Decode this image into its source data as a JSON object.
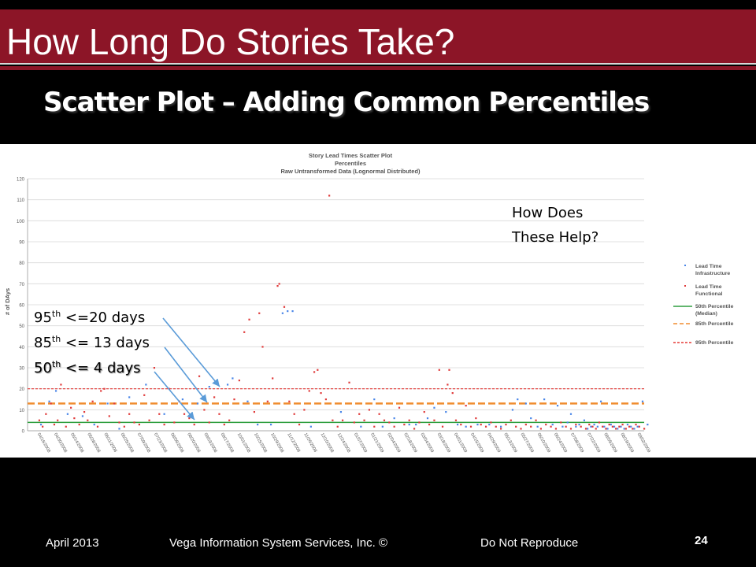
{
  "slide": {
    "title": "How Long Do Stories Take?",
    "subtitle": "Scatter Plot – Adding Common Percentiles",
    "help_line1": "How Does",
    "help_line2": "These Help?",
    "p95": {
      "ord": "95",
      "sup": "th",
      "text": " <=20 days"
    },
    "p85": {
      "ord": "85",
      "sup": "th",
      "text": " <= 13 days"
    },
    "p50": {
      "ord": "50",
      "sup": "th",
      "text": " <= 4 days"
    }
  },
  "footer": {
    "date": "April 2013",
    "company": "Vega Information System Services, Inc. ©",
    "notice": "Do Not Reproduce",
    "page": "24"
  },
  "colors": {
    "title_bar": "#8c1527",
    "infrastructure": "#4a86e8",
    "functional": "#e03a3a",
    "p50": "#2e9e3e",
    "p85": "#f08c2e",
    "p95": "#e53935",
    "arrow": "#5a9bd8"
  },
  "chart_data": {
    "type": "scatter",
    "title": "Story Lead Times Scatter Plot",
    "subtitle": "Percentiles",
    "subtitle2": "Raw Untransformed Data (Lognormal Distributed)",
    "ylabel": "# of DAys",
    "xlabel": "",
    "ylim": [
      0,
      120
    ],
    "yticks": [
      0,
      10,
      20,
      30,
      40,
      50,
      60,
      70,
      80,
      90,
      100,
      110,
      120
    ],
    "xticks": [
      "04/16/2008",
      "04/30/2008",
      "05/14/2008",
      "05/28/2008",
      "06/11/2008",
      "06/25/2008",
      "07/09/2008",
      "07/23/2008",
      "08/06/2008",
      "08/20/2008",
      "09/03/2008",
      "09/17/2008",
      "10/01/2008",
      "10/15/2008",
      "10/29/2008",
      "11/12/2008",
      "11/26/2008",
      "12/10/2008",
      "12/24/2008",
      "01/07/2009",
      "01/21/2009",
      "02/04/2009",
      "02/18/2009",
      "03/04/2009",
      "03/18/2009",
      "04/01/2009",
      "04/15/2009",
      "04/29/2009",
      "05/13/2009",
      "05/27/2009",
      "06/10/2009",
      "06/24/2009",
      "07/08/2009",
      "07/22/2009",
      "08/05/2009",
      "08/19/2009",
      "09/02/2009"
    ],
    "grid": true,
    "legend_placement": "right",
    "legend": [
      "Lead Time Infrastructure",
      "Lead Time Functional",
      "50th Percentile (Median)",
      "85th Percentile",
      "95th Percentile"
    ],
    "percentiles": {
      "p50": 4,
      "p85": 13,
      "p95": 20
    },
    "series": [
      {
        "name": "Lead Time Infrastructure",
        "points": [
          [
            0.3,
            3
          ],
          [
            0.8,
            14
          ],
          [
            1.2,
            19
          ],
          [
            1.9,
            8
          ],
          [
            2.8,
            7
          ],
          [
            3.5,
            3
          ],
          [
            4.3,
            13
          ],
          [
            5.0,
            1
          ],
          [
            5.6,
            16
          ],
          [
            6.6,
            22
          ],
          [
            7.7,
            8
          ],
          [
            8.8,
            15
          ],
          [
            9.7,
            13
          ],
          [
            10.4,
            21
          ],
          [
            11.5,
            22
          ],
          [
            11.8,
            25
          ],
          [
            12.7,
            14
          ],
          [
            13.3,
            3
          ],
          [
            14.1,
            3
          ],
          [
            14.8,
            56
          ],
          [
            15.1,
            57
          ],
          [
            15.4,
            57
          ],
          [
            16.5,
            2
          ],
          [
            18.3,
            9
          ],
          [
            19.5,
            2
          ],
          [
            20.3,
            15
          ],
          [
            20.8,
            2
          ],
          [
            21.5,
            6
          ],
          [
            22.4,
            3
          ],
          [
            22.8,
            3
          ],
          [
            23.5,
            6
          ],
          [
            23.9,
            11
          ],
          [
            24.6,
            9
          ],
          [
            25.3,
            3
          ],
          [
            25.8,
            2
          ],
          [
            26.5,
            3
          ],
          [
            27.2,
            3
          ],
          [
            27.9,
            2
          ],
          [
            28.6,
            10
          ],
          [
            28.9,
            15
          ],
          [
            29.4,
            13
          ],
          [
            29.7,
            6
          ],
          [
            30.1,
            2
          ],
          [
            30.5,
            15
          ],
          [
            31.0,
            3
          ],
          [
            31.3,
            12
          ],
          [
            31.6,
            2
          ],
          [
            31.9,
            4
          ],
          [
            32.1,
            8
          ],
          [
            32.4,
            2
          ],
          [
            32.6,
            3
          ],
          [
            32.9,
            5
          ],
          [
            33.1,
            1
          ],
          [
            33.3,
            2
          ],
          [
            33.5,
            3
          ],
          [
            33.7,
            2
          ],
          [
            33.9,
            14
          ],
          [
            34.1,
            2
          ],
          [
            34.3,
            1
          ],
          [
            34.5,
            3
          ],
          [
            34.7,
            2
          ],
          [
            34.9,
            1
          ],
          [
            35.1,
            2
          ],
          [
            35.3,
            1
          ],
          [
            35.5,
            3
          ],
          [
            35.7,
            2
          ],
          [
            35.9,
            1
          ],
          [
            36.1,
            2
          ],
          [
            36.4,
            14
          ],
          [
            36.7,
            3
          ]
        ]
      },
      {
        "name": "Lead Time Functional",
        "points": [
          [
            0.2,
            5
          ],
          [
            0.4,
            2
          ],
          [
            0.6,
            8
          ],
          [
            0.9,
            13
          ],
          [
            1.1,
            3
          ],
          [
            1.3,
            5
          ],
          [
            1.5,
            22
          ],
          [
            1.8,
            2
          ],
          [
            2.1,
            11
          ],
          [
            2.3,
            6
          ],
          [
            2.6,
            3
          ],
          [
            2.9,
            9
          ],
          [
            3.1,
            5
          ],
          [
            3.4,
            14
          ],
          [
            3.7,
            2
          ],
          [
            3.9,
            19
          ],
          [
            4.1,
            20
          ],
          [
            4.4,
            7
          ],
          [
            4.7,
            13
          ],
          [
            5.0,
            4
          ],
          [
            5.3,
            2
          ],
          [
            5.6,
            8
          ],
          [
            5.9,
            4
          ],
          [
            6.2,
            3
          ],
          [
            6.5,
            17
          ],
          [
            6.8,
            5
          ],
          [
            7.1,
            30
          ],
          [
            7.4,
            8
          ],
          [
            7.7,
            3
          ],
          [
            8.0,
            20
          ],
          [
            8.3,
            4
          ],
          [
            8.6,
            14
          ],
          [
            8.9,
            8
          ],
          [
            9.2,
            6
          ],
          [
            9.5,
            3
          ],
          [
            9.8,
            26
          ],
          [
            10.1,
            10
          ],
          [
            10.4,
            4
          ],
          [
            10.7,
            16
          ],
          [
            11.0,
            8
          ],
          [
            11.3,
            3
          ],
          [
            11.6,
            5
          ],
          [
            11.9,
            15
          ],
          [
            12.2,
            24
          ],
          [
            12.5,
            47
          ],
          [
            12.8,
            53
          ],
          [
            13.1,
            9
          ],
          [
            13.4,
            56
          ],
          [
            13.6,
            40
          ],
          [
            13.9,
            14
          ],
          [
            14.2,
            25
          ],
          [
            14.5,
            69
          ],
          [
            14.6,
            70
          ],
          [
            14.9,
            59
          ],
          [
            15.2,
            14
          ],
          [
            15.5,
            8
          ],
          [
            15.8,
            3
          ],
          [
            16.1,
            10
          ],
          [
            16.4,
            19
          ],
          [
            16.7,
            28
          ],
          [
            16.9,
            29
          ],
          [
            17.1,
            18
          ],
          [
            17.4,
            15
          ],
          [
            17.6,
            112
          ],
          [
            17.8,
            5
          ],
          [
            18.1,
            2
          ],
          [
            18.4,
            5
          ],
          [
            18.8,
            23
          ],
          [
            19.1,
            4
          ],
          [
            19.4,
            8
          ],
          [
            19.7,
            5
          ],
          [
            20.0,
            10
          ],
          [
            20.3,
            2
          ],
          [
            20.6,
            8
          ],
          [
            20.9,
            5
          ],
          [
            21.2,
            4
          ],
          [
            21.5,
            2
          ],
          [
            21.8,
            11
          ],
          [
            22.1,
            3
          ],
          [
            22.4,
            5
          ],
          [
            22.7,
            1
          ],
          [
            23.0,
            4
          ],
          [
            23.3,
            9
          ],
          [
            23.6,
            3
          ],
          [
            23.9,
            5
          ],
          [
            24.2,
            29
          ],
          [
            24.4,
            2
          ],
          [
            24.7,
            22
          ],
          [
            24.8,
            29
          ],
          [
            25.0,
            18
          ],
          [
            25.2,
            5
          ],
          [
            25.5,
            3
          ],
          [
            25.8,
            12
          ],
          [
            26.1,
            2
          ],
          [
            26.4,
            6
          ],
          [
            26.7,
            3
          ],
          [
            27.0,
            2
          ],
          [
            27.3,
            4
          ],
          [
            27.6,
            2
          ],
          [
            27.9,
            1
          ],
          [
            28.2,
            3
          ],
          [
            28.5,
            5
          ],
          [
            28.8,
            2
          ],
          [
            29.1,
            1
          ],
          [
            29.4,
            3
          ],
          [
            29.7,
            2
          ],
          [
            30.0,
            5
          ],
          [
            30.3,
            1
          ],
          [
            30.6,
            3
          ],
          [
            30.9,
            2
          ],
          [
            31.2,
            1
          ],
          [
            31.5,
            4
          ],
          [
            31.8,
            2
          ],
          [
            32.1,
            1
          ],
          [
            32.4,
            3
          ],
          [
            32.7,
            2
          ],
          [
            33.0,
            1
          ],
          [
            33.2,
            3
          ],
          [
            33.4,
            2
          ],
          [
            33.6,
            1
          ],
          [
            33.8,
            4
          ],
          [
            34.0,
            2
          ],
          [
            34.2,
            1
          ],
          [
            34.4,
            3
          ],
          [
            34.6,
            2
          ],
          [
            34.8,
            1
          ],
          [
            35.0,
            2
          ],
          [
            35.2,
            3
          ],
          [
            35.4,
            1
          ],
          [
            35.6,
            2
          ],
          [
            35.8,
            1
          ],
          [
            36.0,
            3
          ],
          [
            36.2,
            2
          ],
          [
            36.5,
            1
          ]
        ]
      }
    ]
  }
}
